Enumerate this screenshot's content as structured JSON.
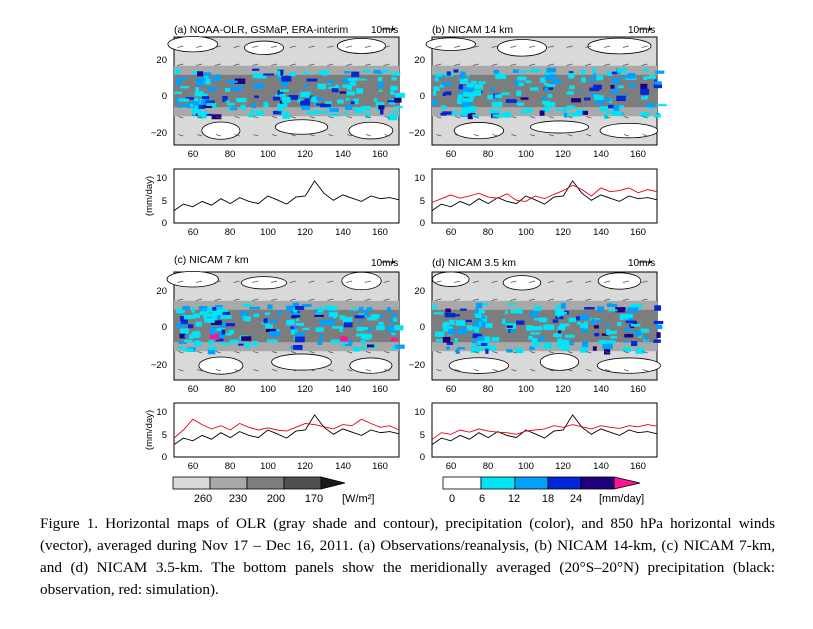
{
  "caption": "Figure 1. Horizontal maps of OLR (gray shade and contour), precipitation (color), and 850 hPa horizontal winds (vector), averaged during Nov 17 – Dec 16, 2011. (a) Observations/reanalysis, (b) NICAM 14-km, (c) NICAM 7-km, and (d) NICAM 3.5-km. The bottom panels show the meridionally averaged (20°S–20°N) precipitation (black: observation, red: simulation).",
  "colors": {
    "observation": "#000000",
    "simulation": "#e8001c",
    "olr_shades": [
      "#d9d9d9",
      "#a9a9a9",
      "#7d7d7d",
      "#505050"
    ],
    "precip_shades": [
      "#ffffff",
      "#00e5f5",
      "#00a0ff",
      "#0027d8",
      "#200080",
      "#ff1493"
    ]
  },
  "chart_data": [
    {
      "panel": "a",
      "type": "heatmap",
      "title": "(a) NOAA-OLR, GSMaP, ERA-interim",
      "vector_label": "10m/s",
      "x_ticks": [
        "60",
        "80",
        "100",
        "120",
        "140",
        "160"
      ],
      "y_ticks": [
        "20",
        "0",
        "−20"
      ],
      "xlim": [
        50,
        170
      ],
      "ylim": [
        -30,
        30
      ],
      "precip_line": {
        "ylabel": "(mm/day)",
        "ylim": [
          0,
          10
        ],
        "y_ticks": [
          "10",
          "5",
          "0"
        ],
        "x_ticks": [
          "60",
          "80",
          "100",
          "120",
          "140",
          "160"
        ],
        "x": [
          50,
          55,
          60,
          65,
          70,
          75,
          80,
          85,
          90,
          95,
          100,
          105,
          110,
          115,
          120,
          125,
          130,
          135,
          140,
          145,
          150,
          155,
          160,
          165,
          170
        ],
        "series": [
          {
            "role": "observation",
            "values": [
              2.3,
              3.5,
              3.0,
              4.0,
              3.3,
              4.5,
              3.6,
              4.7,
              4.0,
              3.6,
              5.0,
              4.3,
              3.5,
              4.8,
              5.0,
              7.8,
              5.5,
              4.2,
              5.2,
              4.6,
              4.0,
              5.0,
              4.5,
              4.7,
              4.3
            ]
          }
        ]
      }
    },
    {
      "panel": "b",
      "type": "heatmap",
      "title": "(b) NICAM 14 km",
      "vector_label": "10m/s",
      "x_ticks": [
        "60",
        "80",
        "100",
        "120",
        "140",
        "160"
      ],
      "y_ticks": [
        "20",
        "0",
        "−20"
      ],
      "xlim": [
        50,
        170
      ],
      "ylim": [
        -30,
        30
      ],
      "precip_line": {
        "ylabel": "",
        "ylim": [
          0,
          10
        ],
        "y_ticks": [
          "10",
          "5",
          "0"
        ],
        "x_ticks": [
          "60",
          "80",
          "100",
          "120",
          "140",
          "160"
        ],
        "x": [
          50,
          55,
          60,
          65,
          70,
          75,
          80,
          85,
          90,
          95,
          100,
          105,
          110,
          115,
          120,
          125,
          130,
          135,
          140,
          145,
          150,
          155,
          160,
          165,
          170
        ],
        "series": [
          {
            "role": "observation",
            "values": [
              2.3,
              3.5,
              3.0,
              4.0,
              3.3,
              4.5,
              3.6,
              4.7,
              4.0,
              3.6,
              5.0,
              4.3,
              3.5,
              4.8,
              5.0,
              7.8,
              5.5,
              4.2,
              5.2,
              4.6,
              4.0,
              5.0,
              4.5,
              4.7,
              4.3
            ]
          },
          {
            "role": "simulation",
            "values": [
              3.8,
              4.5,
              5.2,
              4.6,
              5.0,
              5.5,
              4.8,
              4.6,
              5.4,
              4.2,
              4.0,
              5.0,
              4.5,
              5.3,
              6.0,
              7.0,
              6.2,
              5.0,
              6.5,
              5.8,
              6.0,
              6.5,
              5.6,
              6.2,
              5.8
            ]
          }
        ]
      }
    },
    {
      "panel": "c",
      "type": "heatmap",
      "title": "(c) NICAM 7 km",
      "vector_label": "10m/s",
      "x_ticks": [
        "60",
        "80",
        "100",
        "120",
        "140",
        "160"
      ],
      "y_ticks": [
        "20",
        "0",
        "−20"
      ],
      "xlim": [
        50,
        170
      ],
      "ylim": [
        -30,
        30
      ],
      "precip_line": {
        "ylabel": "(mm/day)",
        "ylim": [
          0,
          10
        ],
        "y_ticks": [
          "10",
          "5",
          "0"
        ],
        "x_ticks": [
          "60",
          "80",
          "100",
          "120",
          "140",
          "160"
        ],
        "x": [
          50,
          55,
          60,
          65,
          70,
          75,
          80,
          85,
          90,
          95,
          100,
          105,
          110,
          115,
          120,
          125,
          130,
          135,
          140,
          145,
          150,
          155,
          160,
          165,
          170
        ],
        "series": [
          {
            "role": "observation",
            "values": [
              2.3,
              3.5,
              3.0,
              4.0,
              3.3,
              4.5,
              3.6,
              4.7,
              4.0,
              3.6,
              5.0,
              4.3,
              3.5,
              4.8,
              5.0,
              7.8,
              5.5,
              4.2,
              5.2,
              4.6,
              4.0,
              5.0,
              4.5,
              4.7,
              4.3
            ]
          },
          {
            "role": "simulation",
            "values": [
              3.5,
              5.0,
              7.0,
              6.0,
              5.2,
              5.8,
              5.0,
              6.2,
              5.5,
              5.0,
              5.4,
              5.0,
              4.8,
              5.5,
              6.2,
              6.0,
              5.6,
              5.2,
              6.0,
              5.8,
              7.0,
              6.2,
              5.5,
              5.8,
              5.0
            ]
          }
        ]
      }
    },
    {
      "panel": "d",
      "type": "heatmap",
      "title": "(d) NICAM 3.5 km",
      "vector_label": "10m/s",
      "x_ticks": [
        "60",
        "80",
        "100",
        "120",
        "140",
        "160"
      ],
      "y_ticks": [
        "20",
        "0",
        "−20"
      ],
      "xlim": [
        50,
        170
      ],
      "ylim": [
        -30,
        30
      ],
      "precip_line": {
        "ylabel": "",
        "ylim": [
          0,
          10
        ],
        "y_ticks": [
          "10",
          "5",
          "0"
        ],
        "x_ticks": [
          "60",
          "80",
          "100",
          "120",
          "140",
          "160"
        ],
        "x": [
          50,
          55,
          60,
          65,
          70,
          75,
          80,
          85,
          90,
          95,
          100,
          105,
          110,
          115,
          120,
          125,
          130,
          135,
          140,
          145,
          150,
          155,
          160,
          165,
          170
        ],
        "series": [
          {
            "role": "observation",
            "values": [
              2.3,
              3.5,
              3.0,
              4.0,
              3.3,
              4.5,
              3.6,
              4.7,
              4.0,
              3.6,
              5.0,
              4.3,
              3.5,
              4.8,
              5.0,
              7.8,
              5.5,
              4.2,
              5.2,
              4.6,
              4.0,
              5.0,
              4.5,
              4.7,
              4.3
            ]
          },
          {
            "role": "simulation",
            "values": [
              3.2,
              4.5,
              4.2,
              5.0,
              4.6,
              5.2,
              4.8,
              4.6,
              4.5,
              4.2,
              4.8,
              5.0,
              5.2,
              5.8,
              5.5,
              6.0,
              5.6,
              5.2,
              5.8,
              5.5,
              5.3,
              5.8,
              5.6,
              6.0,
              5.7
            ]
          }
        ]
      }
    },
    {
      "type": "colorbar",
      "name": "olr",
      "tick_labels": [
        "260",
        "230",
        "200",
        "170"
      ],
      "unit": "[W/m²]",
      "values": [
        260,
        230,
        200,
        170
      ]
    },
    {
      "type": "colorbar",
      "name": "precipitation",
      "tick_labels": [
        "0",
        "6",
        "12",
        "18",
        "24"
      ],
      "unit": "[mm/day]",
      "values": [
        0,
        6,
        12,
        18,
        24
      ]
    }
  ]
}
